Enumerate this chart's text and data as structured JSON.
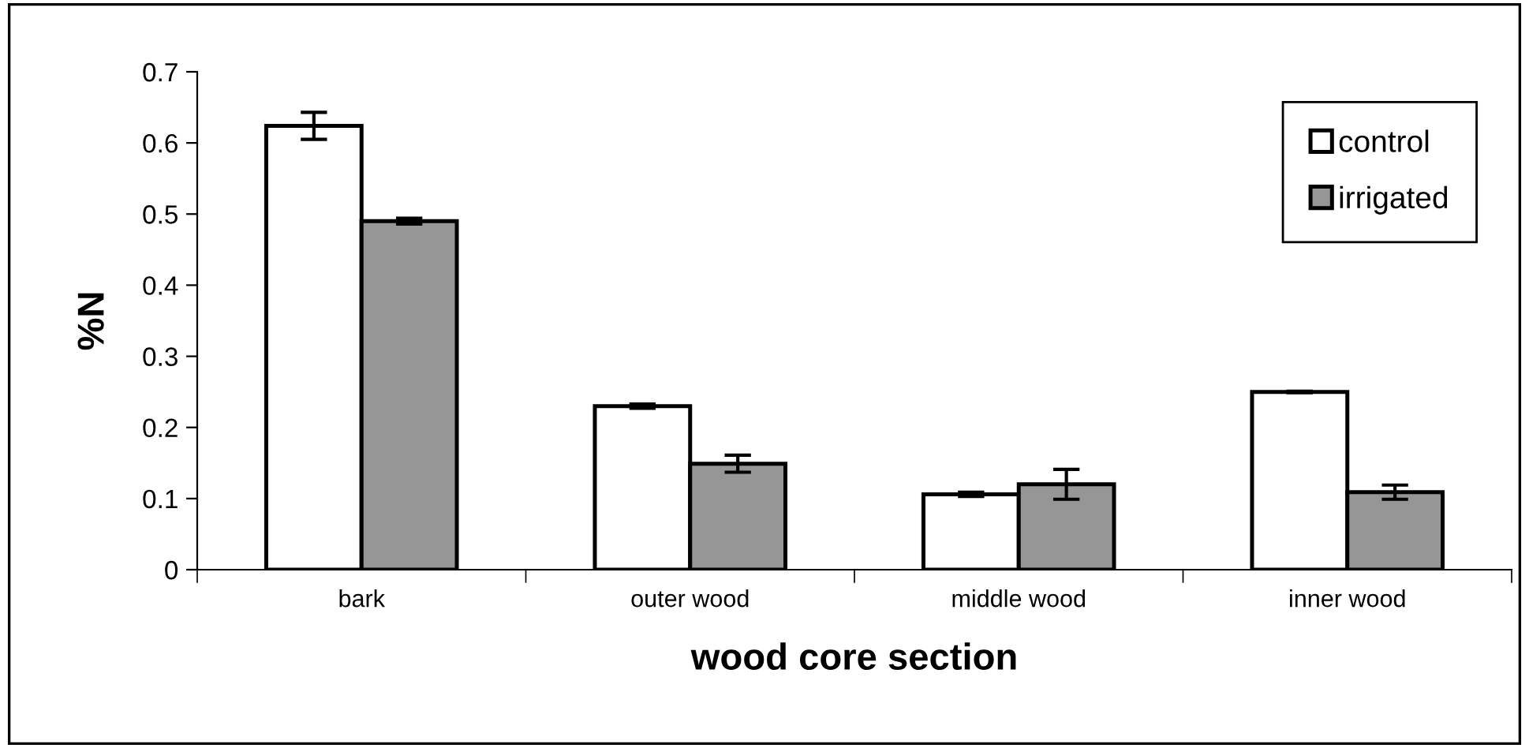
{
  "chart_data": {
    "type": "bar",
    "xlabel": "wood core section",
    "ylabel": "%N",
    "categories": [
      "bark",
      "outer wood",
      "middle wood",
      "inner wood"
    ],
    "series": [
      {
        "name": "control",
        "color": "#ffffff",
        "values": [
          0.624,
          0.23,
          0.106,
          0.25
        ],
        "errors": [
          0.019,
          0.003,
          0.003,
          0.001
        ]
      },
      {
        "name": "irrigated",
        "color": "#969696",
        "values": [
          0.49,
          0.149,
          0.12,
          0.109
        ],
        "errors": [
          0.004,
          0.012,
          0.021,
          0.01
        ]
      }
    ],
    "ylim": [
      0,
      0.7
    ],
    "yticks": [
      {
        "value": 0,
        "label": "0"
      },
      0.1,
      0.2,
      0.3,
      0.4,
      0.5,
      0.6,
      0.7
    ],
    "grid": false,
    "legend": "top right"
  }
}
